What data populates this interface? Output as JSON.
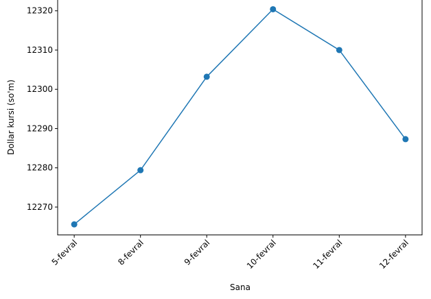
{
  "chart_data": {
    "type": "line",
    "x_label": "Sana",
    "y_label": "Dollar kursi (so'm)",
    "categories": [
      "5-fevral",
      "8-fevral",
      "9-fevral",
      "10-fevral",
      "11-fevral",
      "12-fevral"
    ],
    "series": [
      {
        "name": "Dollar kursi",
        "color": "#1f77b4",
        "values": [
          12265.6,
          12279.4,
          12303.2,
          12320.4,
          12310.0,
          12287.3
        ]
      }
    ],
    "ylim": [
      12262.9,
      12323.1
    ],
    "yticks": [
      12270,
      12280,
      12290,
      12300,
      12310,
      12320
    ],
    "grid": false
  }
}
